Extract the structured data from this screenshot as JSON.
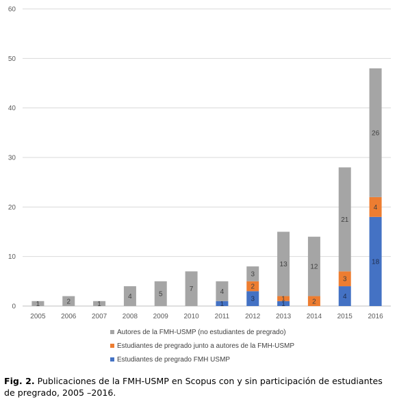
{
  "chart_data": {
    "type": "bar",
    "stacked": true,
    "categories": [
      "2005",
      "2006",
      "2007",
      "2008",
      "2009",
      "2010",
      "2011",
      "2012",
      "2013",
      "2014",
      "2015",
      "2016"
    ],
    "series": [
      {
        "name": "Estudiantes de pregrado FMH USMP",
        "color": "#4472c4",
        "values": [
          0,
          0,
          0,
          0,
          0,
          0,
          1,
          3,
          1,
          0,
          4,
          18
        ]
      },
      {
        "name": "Estudiantes de pregrado junto a autores de la FMH-USMP",
        "color": "#ed7d31",
        "values": [
          0,
          0,
          0,
          0,
          0,
          0,
          0,
          2,
          1,
          2,
          3,
          4
        ]
      },
      {
        "name": "Autores de la FMH-USMP (no estudiantes de pregrado)",
        "color": "#a5a5a5",
        "values": [
          1,
          2,
          1,
          4,
          5,
          7,
          4,
          3,
          13,
          12,
          21,
          26
        ]
      }
    ],
    "ylim": [
      0,
      60
    ],
    "yticks": [
      0,
      10,
      20,
      30,
      40,
      50,
      60
    ],
    "gridlines": true,
    "legend_position": "bottom",
    "legend_order": [
      2,
      1,
      0
    ]
  },
  "caption": {
    "label": "Fig. 2.",
    "text": " Publicaciones de la FMH-USMP en Scopus con y sin participación de estudiantes de pregrado, 2005 –2016."
  }
}
